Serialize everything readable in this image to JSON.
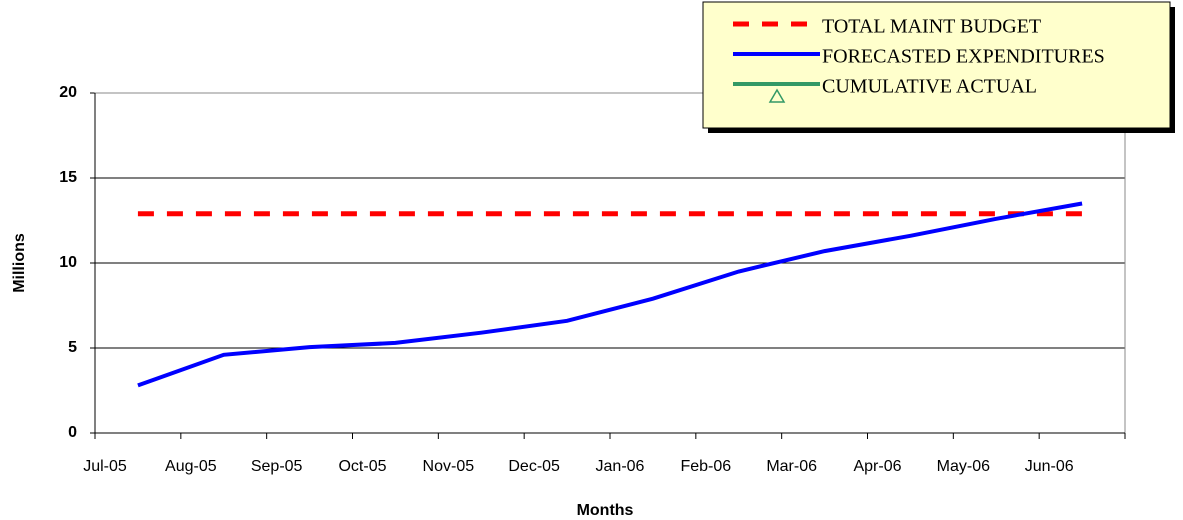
{
  "chart_data": {
    "type": "line",
    "x_label": "Months",
    "y_label": "Millions",
    "categories": [
      "Jul-05",
      "Aug-05",
      "Sep-05",
      "Oct-05",
      "Nov-05",
      "Dec-05",
      "Jan-06",
      "Feb-06",
      "Mar-06",
      "Apr-06",
      "May-06",
      "Jun-06"
    ],
    "series": [
      {
        "name": "TOTAL MAINT BUDGET",
        "color": "#ff0000",
        "dashed": true,
        "values": [
          12.9,
          12.9,
          12.9,
          12.9,
          12.9,
          12.9,
          12.9,
          12.9,
          12.9,
          12.9,
          12.9,
          12.9
        ]
      },
      {
        "name": "FORECASTED EXPENDITURES",
        "color": "#0000ff",
        "dashed": false,
        "values": [
          2.8,
          4.6,
          5.05,
          5.3,
          5.9,
          6.6,
          7.9,
          9.5,
          10.7,
          11.6,
          12.6,
          13.5
        ]
      },
      {
        "name": "CUMULATIVE ACTUAL",
        "color": "#339966",
        "dashed": false,
        "marker": "triangle",
        "values": [
          null,
          null,
          null,
          null,
          null,
          null,
          null,
          null,
          null,
          null,
          null,
          null
        ]
      }
    ],
    "ylim": [
      0,
      20
    ],
    "yticks": [
      0,
      5,
      10,
      15,
      20
    ],
    "grid": true,
    "legend": "top-right"
  }
}
